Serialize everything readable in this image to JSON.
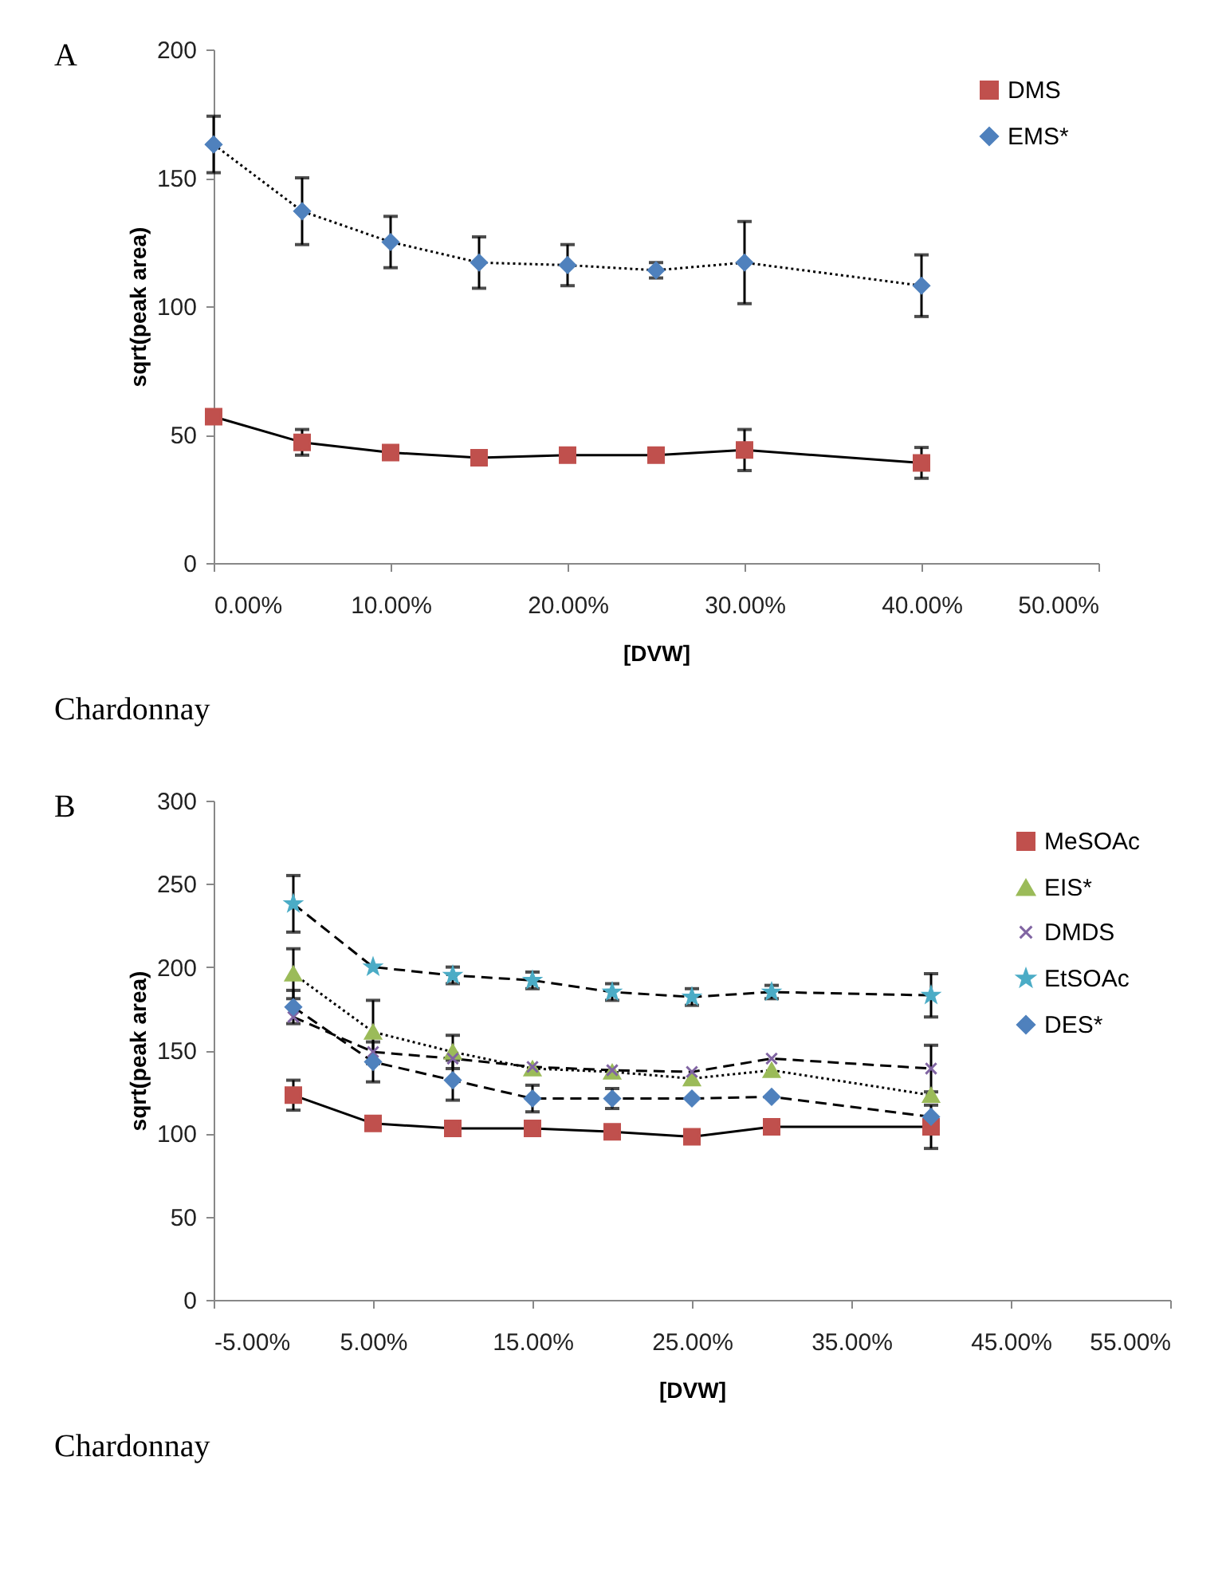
{
  "chart_data": [
    {
      "type": "line",
      "annotations": [
        "A",
        "Chardonnay"
      ],
      "xlabel": "[DVW]",
      "ylabel": "sqrt(peak area)",
      "x": [
        0,
        5,
        10,
        15,
        20,
        25,
        30,
        40
      ],
      "xlim": [
        0,
        50
      ],
      "xticks": [
        {
          "value": 0,
          "label": "0.00%"
        },
        {
          "value": 10,
          "label": "10.00%"
        },
        {
          "value": 20,
          "label": "20.00%"
        },
        {
          "value": 30,
          "label": "30.00%"
        },
        {
          "value": 40,
          "label": "40.00%"
        },
        {
          "value": 50,
          "label": "50.00%"
        }
      ],
      "ylim": [
        0,
        200
      ],
      "yticks": [
        0,
        50,
        100,
        150,
        200
      ],
      "grid": false,
      "legend": "top right",
      "series": [
        {
          "name": "DMS",
          "color": "#c0504d",
          "marker": "square",
          "line_style": "solid",
          "values": [
            57,
            47,
            43,
            41,
            42,
            42,
            44,
            39
          ],
          "errors": [
            null,
            5,
            null,
            null,
            null,
            null,
            8,
            6
          ]
        },
        {
          "name": "EMS*",
          "color": "#4f81bd",
          "marker": "diamond",
          "line_style": "dotted",
          "values": [
            163,
            137,
            125,
            117,
            116,
            114,
            117,
            108
          ],
          "errors": [
            11,
            13,
            10,
            10,
            8,
            3,
            16,
            12
          ]
        }
      ]
    },
    {
      "type": "line",
      "annotations": [
        "B",
        "Chardonnay"
      ],
      "xlabel": "[DVW]",
      "ylabel": "sqrt(peak area)",
      "x": [
        0,
        5,
        10,
        15,
        20,
        25,
        30,
        40
      ],
      "xlim": [
        -5,
        55
      ],
      "xticks": [
        {
          "value": -5,
          "label": "-5.00%"
        },
        {
          "value": 5,
          "label": "5.00%"
        },
        {
          "value": 15,
          "label": "15.00%"
        },
        {
          "value": 25,
          "label": "25.00%"
        },
        {
          "value": 35,
          "label": "35.00%"
        },
        {
          "value": 45,
          "label": "45.00%"
        },
        {
          "value": 55,
          "label": "55.00%"
        }
      ],
      "ylim": [
        0,
        300
      ],
      "yticks": [
        0,
        50,
        100,
        150,
        200,
        250,
        300
      ],
      "grid": false,
      "legend": "top right",
      "series": [
        {
          "name": "MeSOAc",
          "color": "#c0504d",
          "marker": "square",
          "line_style": "solid",
          "values": [
            123,
            106,
            103,
            103,
            101,
            98,
            104,
            104
          ],
          "errors": [
            9,
            null,
            null,
            null,
            null,
            null,
            null,
            13
          ]
        },
        {
          "name": "EIS*",
          "color": "#9bbb59",
          "marker": "triangle",
          "line_style": "dotted",
          "values": [
            196,
            161,
            149,
            139,
            137,
            133,
            138,
            123
          ],
          "errors": [
            15,
            19,
            10,
            null,
            null,
            null,
            null,
            null
          ]
        },
        {
          "name": "DMDS",
          "color": "#8064a2",
          "marker": "cross",
          "line_style": "dashed",
          "values": [
            170,
            149,
            145,
            140,
            138,
            137,
            145,
            139
          ],
          "errors": [
            null,
            null,
            null,
            null,
            null,
            null,
            null,
            14
          ]
        },
        {
          "name": "EtSOAc",
          "color": "#4bacc6",
          "marker": "star",
          "line_style": "dashed",
          "values": [
            238,
            200,
            195,
            192,
            185,
            182,
            185,
            183
          ],
          "errors": [
            17,
            null,
            5,
            5,
            5,
            5,
            4,
            13
          ]
        },
        {
          "name": "DES*",
          "color": "#4f81bd",
          "marker": "diamond",
          "line_style": "dashed",
          "values": [
            176,
            143,
            132,
            121,
            121,
            121,
            122,
            110
          ],
          "errors": [
            10,
            12,
            12,
            8,
            6,
            null,
            null,
            null
          ]
        }
      ]
    }
  ]
}
